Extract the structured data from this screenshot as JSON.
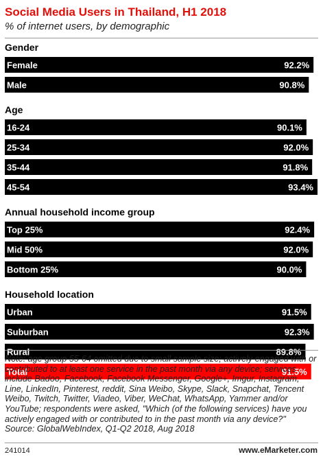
{
  "chart_data": {
    "type": "bar",
    "orientation": "horizontal",
    "title": "Social Media Users in Thailand, H1 2018",
    "subtitle": "% of internet users, by demographic",
    "value_unit": "%",
    "xlim": [
      0,
      93.4
    ],
    "grid": false,
    "legend": "none",
    "groups": [
      {
        "label": "Gender",
        "items": [
          {
            "label": "Female",
            "value": 92.2,
            "display": "92.2%"
          },
          {
            "label": "Male",
            "value": 90.8,
            "display": "90.8%"
          }
        ]
      },
      {
        "label": "Age",
        "items": [
          {
            "label": "16-24",
            "value": 90.1,
            "display": "90.1%"
          },
          {
            "label": "25-34",
            "value": 92.0,
            "display": "92.0%"
          },
          {
            "label": "35-44",
            "value": 91.8,
            "display": "91.8%"
          },
          {
            "label": "45-54",
            "value": 93.4,
            "display": "93.4%"
          }
        ]
      },
      {
        "label": "Annual household income group",
        "items": [
          {
            "label": "Top 25%",
            "value": 92.4,
            "display": "92.4%"
          },
          {
            "label": "Mid 50%",
            "value": 92.0,
            "display": "92.0%"
          },
          {
            "label": "Bottom 25%",
            "value": 90.0,
            "display": "90.0%"
          }
        ]
      },
      {
        "label": "Household location",
        "items": [
          {
            "label": "Urban",
            "value": 91.5,
            "display": "91.5%"
          },
          {
            "label": "Suburban",
            "value": 92.3,
            "display": "92.3%"
          },
          {
            "label": "Rural",
            "value": 89.8,
            "display": "89.8%"
          }
        ]
      }
    ],
    "total": {
      "label": "Total",
      "value": 91.5,
      "display": "91.5%"
    }
  },
  "colors": {
    "bar": "#000000",
    "total_bar": "#ff0000",
    "title": "#e0100a",
    "bar_text": "#ffffff"
  },
  "note": "Note: age group 55-64 omitted due to small sample size; actively engaged with or contributed to at least one service in the past month via any device; services include Badoo, Facebook, Facebook Messenger, Google+, Imgur, Instagram, Line, LinkedIn, Pinterest, reddit, Sina Weibo, Skype, Slack, Snapchat, Tencent Weibo, Twitch, Twitter, Viadeo, Viber, WeChat, WhatsApp, Yammer and/or YouTube; respondents were asked, \"Which (of the following services) have you actively engaged with or contributed to in the past month via any device?\"",
  "source": "Source: GlobalWebIndex, Q1-Q2 2018, Aug 2018",
  "footer": {
    "id": "241014",
    "brand": "www.eMarketer.com"
  }
}
